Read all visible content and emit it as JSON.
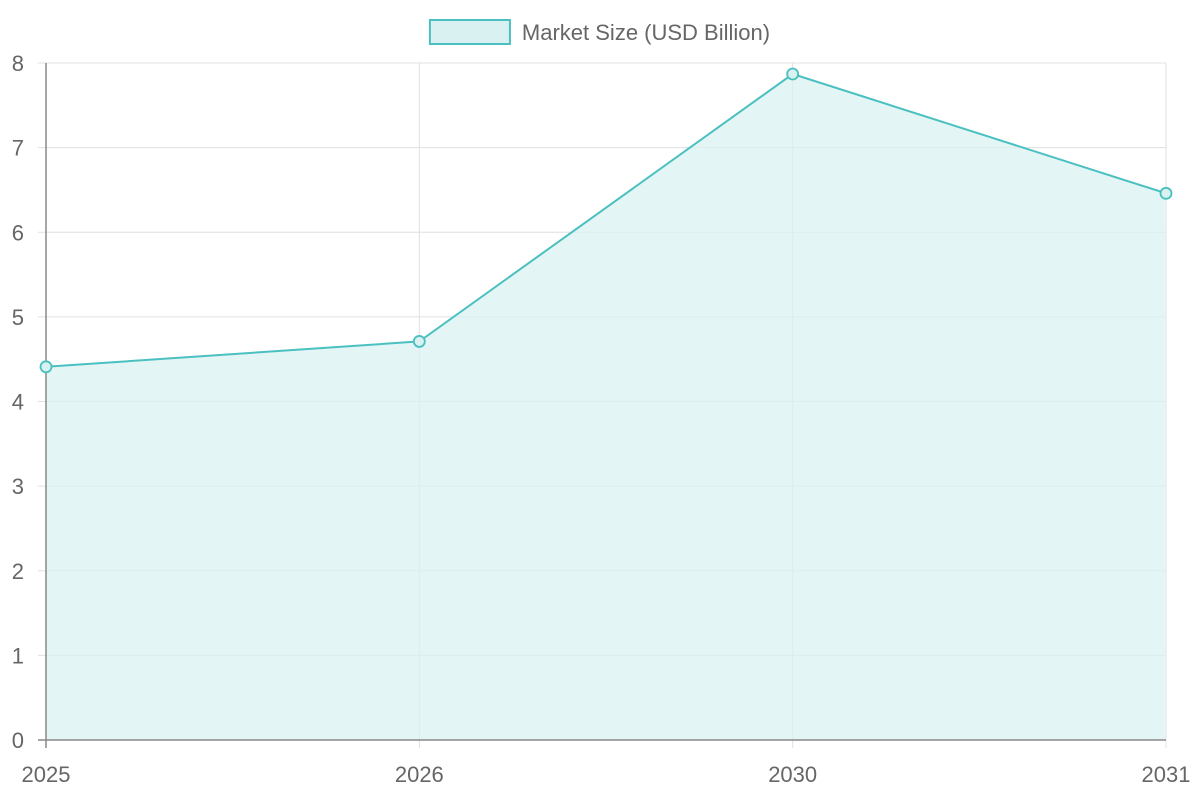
{
  "chart_data": {
    "type": "area",
    "categories": [
      "2025",
      "2026",
      "2030",
      "2031"
    ],
    "series": [
      {
        "name": "Market Size (USD Billion)",
        "values": [
          4.41,
          4.71,
          7.87,
          6.46
        ]
      }
    ],
    "ylim": [
      0,
      8
    ],
    "yticks": [
      "0",
      "1",
      "2",
      "3",
      "4",
      "5",
      "6",
      "7",
      "8"
    ],
    "grid": true,
    "legend_position": "top",
    "colors": {
      "line": "#4bc0c0",
      "fill": "#d9f1f1",
      "grid": "#e0e0e0",
      "axis": "#888888",
      "text": "#666666"
    }
  }
}
